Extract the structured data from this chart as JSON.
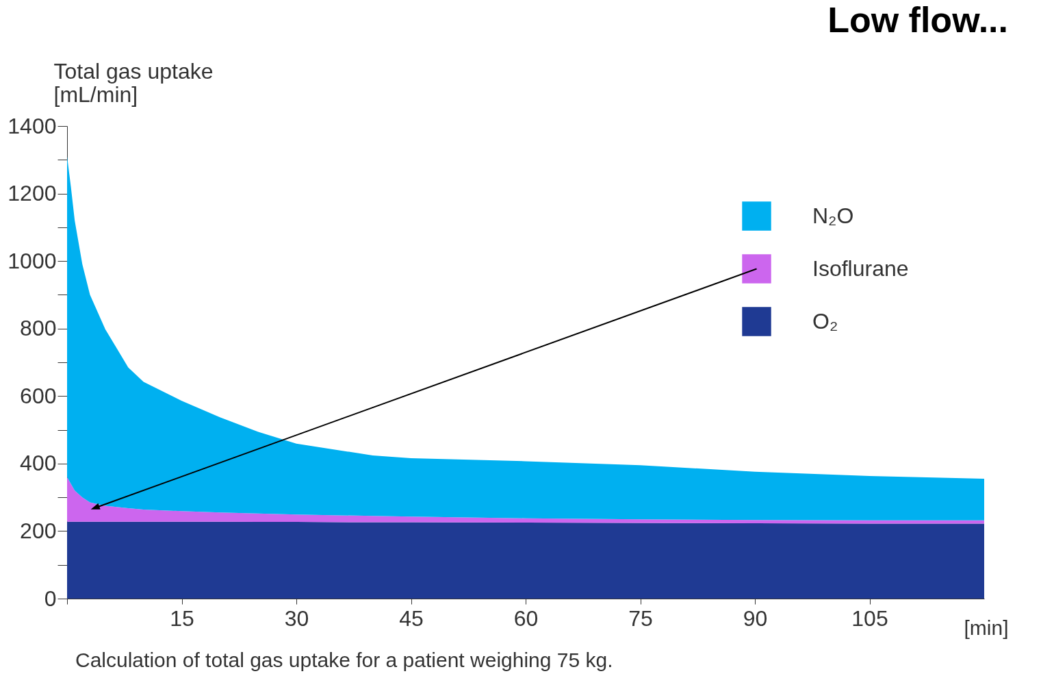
{
  "chart_data": {
    "type": "area",
    "stacked": true,
    "title": "Low flow...",
    "ylabel": "Total gas uptake [mL/min]",
    "xlabel": "[min]",
    "annotations": [
      "Calculation of total gas uptake for a patient weighing 75 kg."
    ],
    "x": [
      0,
      0.5,
      1,
      2,
      3,
      5,
      8,
      10,
      15,
      20,
      25,
      30,
      40,
      45,
      60,
      75,
      90,
      105,
      120
    ],
    "series": [
      {
        "name": "O₂",
        "color": "#1f3a93",
        "values": [
          228,
          228,
          228,
          228,
          228,
          228,
          228,
          228,
          228,
          228,
          227,
          227,
          226,
          226,
          225,
          224,
          223,
          222,
          222
        ]
      },
      {
        "name": "Isoflurane",
        "color": "#cc66ee",
        "values": [
          132,
          112,
          92,
          72,
          57,
          47,
          40,
          36,
          31,
          27,
          25,
          22,
          19,
          17,
          13,
          11,
          10,
          10,
          10
        ]
      },
      {
        "name": "N₂O",
        "color": "#00b0f0",
        "values": [
          950,
          880,
          800,
          690,
          615,
          523,
          417,
          378,
          327,
          282,
          242,
          210,
          179,
          173,
          169,
          160,
          143,
          131,
          123
        ]
      }
    ],
    "xlim": [
      0,
      120
    ],
    "xticks": [
      {
        "value": 0,
        "label": null
      },
      15,
      30,
      45,
      60,
      75,
      90,
      105
    ],
    "ylim": [
      0,
      1400
    ],
    "yticks": [
      0,
      {
        "value": 100,
        "label": null
      },
      200,
      {
        "value": 300,
        "label": null
      },
      400,
      {
        "value": 500,
        "label": null
      },
      600,
      {
        "value": 700,
        "label": null
      },
      800,
      {
        "value": 900,
        "label": null
      },
      1000,
      {
        "value": 1100,
        "label": null
      },
      1200,
      {
        "value": 1300,
        "label": null
      },
      1400
    ],
    "legend": "top right",
    "grid": false
  }
}
